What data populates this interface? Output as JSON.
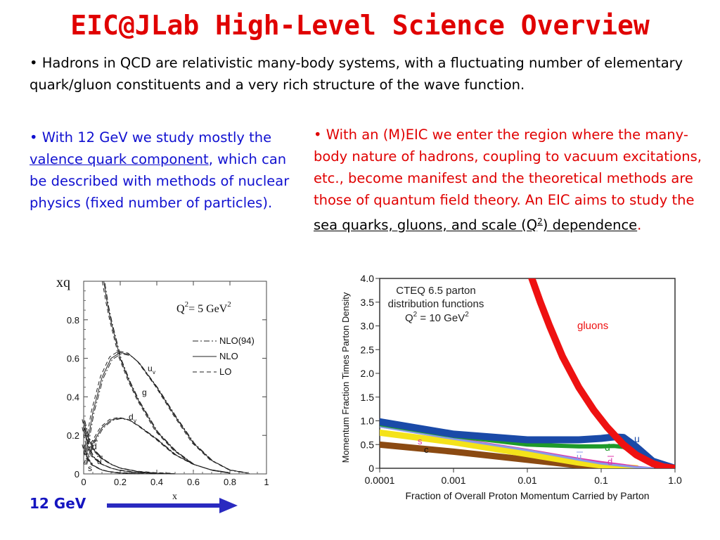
{
  "title": "EIC@JLab High-Level Science Overview",
  "bullet1": {
    "bullet": "•",
    "text": "Hadrons in QCD are relativistic many-body systems, with a fluctuating number of elementary quark/gluon constituents and a very rich structure of the wave function."
  },
  "bullet2": {
    "bullet": "•",
    "pre": "With 12 GeV we study mostly the ",
    "underlined": "valence quark component",
    "post": ", which can be described with methods of nuclear physics (fixed number of particles)."
  },
  "bullet3": {
    "bullet": "•",
    "pre": "With an (M)EIC we enter the region where the many-body nature of hadrons, coupling to vacuum excitations, etc., become manifest and the theoretical methods are those of quantum field theory. An EIC aims to study the ",
    "underlined_a": "sea quarks, gluons, and scale (Q",
    "sup": "2",
    "underlined_b": ") dependence",
    "post": "."
  },
  "energy_label": "12 GeV",
  "chart_data": [
    {
      "type": "line",
      "ylabel": "xq",
      "xlabel": "x",
      "xlim": [
        0,
        1
      ],
      "ylim": [
        0,
        1.0
      ],
      "xticks": [
        "0",
        "0.2",
        "0.4",
        "0.6",
        "0.8",
        "1"
      ],
      "yticks": [
        "0",
        "0.2",
        "0.4",
        "0.6",
        "0.8"
      ],
      "annotation": {
        "base": "Q",
        "sup": "2",
        "mid": "= 5 GeV",
        "sup2": "2"
      },
      "legend": [
        "NLO(94)",
        "NLO",
        "LO"
      ],
      "legend_placement": "right",
      "curve_labels": {
        "uv": "u",
        "uv_sub": "v",
        "g": "g",
        "dv": "d",
        "dv_sub": "v",
        "dbar": "d",
        "ubar": "u",
        "s": "s"
      },
      "series": [
        {
          "name": "u_v",
          "x": [
            0.01,
            0.05,
            0.1,
            0.15,
            0.2,
            0.25,
            0.3,
            0.4,
            0.5,
            0.6,
            0.7,
            0.8,
            0.9
          ],
          "y": [
            0.1,
            0.32,
            0.5,
            0.6,
            0.63,
            0.62,
            0.58,
            0.45,
            0.3,
            0.16,
            0.07,
            0.02,
            0.004
          ]
        },
        {
          "name": "g",
          "x": [
            0.11,
            0.13,
            0.15,
            0.2,
            0.25,
            0.3,
            0.4,
            0.5,
            0.6,
            0.7,
            0.8
          ],
          "y": [
            1.0,
            0.88,
            0.79,
            0.6,
            0.48,
            0.38,
            0.22,
            0.12,
            0.05,
            0.02,
            0.005
          ]
        },
        {
          "name": "d_v",
          "x": [
            0.01,
            0.05,
            0.1,
            0.15,
            0.2,
            0.25,
            0.3,
            0.4,
            0.5,
            0.6,
            0.7,
            0.8
          ],
          "y": [
            0.05,
            0.16,
            0.24,
            0.28,
            0.29,
            0.28,
            0.25,
            0.18,
            0.1,
            0.05,
            0.02,
            0.005
          ]
        },
        {
          "name": "dbar",
          "x": [
            0.0,
            0.02,
            0.05,
            0.1,
            0.15,
            0.2,
            0.3,
            0.4,
            0.5
          ],
          "y": [
            0.28,
            0.2,
            0.13,
            0.08,
            0.05,
            0.03,
            0.012,
            0.004,
            0.001
          ]
        },
        {
          "name": "ubar",
          "x": [
            0.0,
            0.02,
            0.05,
            0.1,
            0.15,
            0.2,
            0.3,
            0.4
          ],
          "y": [
            0.24,
            0.15,
            0.09,
            0.05,
            0.03,
            0.018,
            0.006,
            0.002
          ]
        },
        {
          "name": "s",
          "x": [
            0.0,
            0.02,
            0.05,
            0.1,
            0.15,
            0.2,
            0.3
          ],
          "y": [
            0.15,
            0.08,
            0.045,
            0.02,
            0.01,
            0.005,
            0.001
          ]
        }
      ]
    },
    {
      "type": "area",
      "ylabel": "Momentum Fraction Times Parton Density",
      "xlabel": "Fraction of Overall Proton Momentum Carried by Parton",
      "xscale": "log",
      "xlim": [
        0.0001,
        1.0
      ],
      "ylim": [
        0,
        4.0
      ],
      "xticks": [
        "0.0001",
        "0.001",
        "0.01",
        "0.1",
        "1.0"
      ],
      "yticks": [
        "0",
        "0.5",
        "1.0",
        "1.5",
        "2.0",
        "2.5",
        "3.0",
        "3.5",
        "4.0"
      ],
      "annotation": {
        "line1": "CTEQ 6.5 parton",
        "line2": "distribution functions",
        "line3": "Q",
        "sup": "2",
        "line3b": " = 10 GeV",
        "sup2": "2"
      },
      "colors": {
        "gluons": "#ee1111",
        "u": "#1a4aa8",
        "d": "#1e9a2a",
        "ubar": "#8a9ae8",
        "dbar": "#dd33aa",
        "s": "#f4e21a",
        "c": "#8b4a12"
      },
      "series": [
        {
          "name": "gluons",
          "x": [
            0.0115,
            0.015,
            0.02,
            0.03,
            0.05,
            0.08,
            0.12,
            0.2,
            0.3,
            0.5,
            0.7,
            1.0
          ],
          "y": [
            4.0,
            3.5,
            3.0,
            2.35,
            1.7,
            1.22,
            0.87,
            0.5,
            0.28,
            0.1,
            0.03,
            0.0
          ]
        },
        {
          "name": "u",
          "x": [
            0.0001,
            0.001,
            0.01,
            0.05,
            0.1,
            0.15,
            0.2,
            0.3,
            0.5,
            1.0
          ],
          "y": [
            0.98,
            0.72,
            0.6,
            0.6,
            0.63,
            0.66,
            0.65,
            0.45,
            0.15,
            0.0
          ]
        },
        {
          "name": "d",
          "x": [
            0.0001,
            0.001,
            0.01,
            0.05,
            0.1,
            0.15,
            0.2,
            0.3,
            0.5,
            1.0
          ],
          "y": [
            0.93,
            0.68,
            0.5,
            0.46,
            0.46,
            0.47,
            0.45,
            0.3,
            0.09,
            0.0
          ]
        },
        {
          "name": "ubar",
          "x": [
            0.0001,
            0.001,
            0.01,
            0.05,
            0.1,
            0.2,
            0.3,
            0.5
          ],
          "y": [
            0.88,
            0.62,
            0.38,
            0.18,
            0.1,
            0.05,
            0.02,
            0.0
          ]
        },
        {
          "name": "dbar",
          "x": [
            0.0001,
            0.001,
            0.01,
            0.05,
            0.1,
            0.2,
            0.3,
            0.5
          ],
          "y": [
            0.88,
            0.63,
            0.39,
            0.2,
            0.13,
            0.07,
            0.03,
            0.0
          ]
        },
        {
          "name": "s",
          "x": [
            0.0001,
            0.001,
            0.01,
            0.05,
            0.1,
            0.2,
            0.3
          ],
          "y": [
            0.75,
            0.55,
            0.3,
            0.12,
            0.06,
            0.02,
            0.0
          ]
        },
        {
          "name": "c",
          "x": [
            0.0001,
            0.001,
            0.01,
            0.05,
            0.1,
            0.2,
            0.3
          ],
          "y": [
            0.5,
            0.35,
            0.18,
            0.06,
            0.02,
            0.005,
            0.0
          ]
        }
      ],
      "labels": {
        "gluons": "gluons",
        "u": "u",
        "d": "d",
        "ubar": "u",
        "dbar": "d",
        "s": "s",
        "c": "c"
      }
    }
  ]
}
